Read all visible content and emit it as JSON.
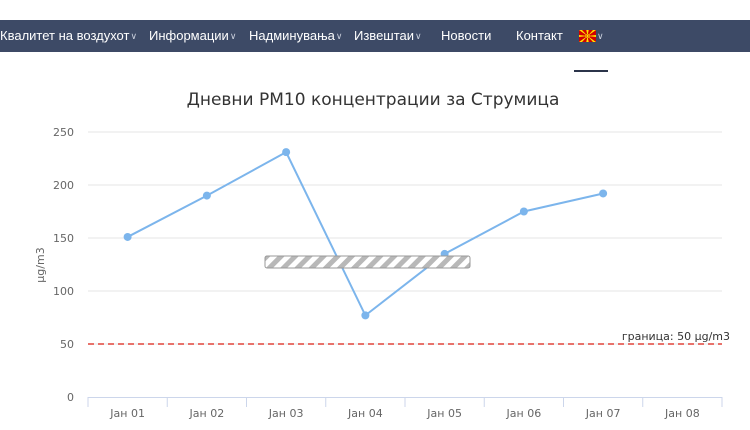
{
  "nav": {
    "items": [
      {
        "label": "Квалитет на воздухот",
        "has_dropdown": true
      },
      {
        "label": "Информации",
        "has_dropdown": true
      },
      {
        "label": "Надминувања",
        "has_dropdown": true
      },
      {
        "label": "Извештаи",
        "has_dropdown": true
      },
      {
        "label": "Новости",
        "has_dropdown": false
      },
      {
        "label": "Контакт",
        "has_dropdown": false
      }
    ],
    "language_flag": "macedonia-flag-icon",
    "colors": {
      "background": "#3d4a66",
      "text": "#ffffff"
    }
  },
  "chart_data": {
    "type": "line",
    "title": "Дневни PM10 концентрации за Струмица",
    "ylabel": "µg/m3",
    "xlabel": "",
    "categories": [
      "Јан 01",
      "Јан 02",
      "Јан 03",
      "Јан 04",
      "Јан 05",
      "Јан 06",
      "Јан 07",
      "Јан 08"
    ],
    "series": [
      {
        "values": [
          151,
          190,
          231,
          77,
          135,
          175,
          192,
          null
        ],
        "color": "#7cb5ec"
      }
    ],
    "ylim": [
      0,
      250
    ],
    "yticks": [
      0,
      50,
      100,
      150,
      200,
      250
    ],
    "grid": true,
    "plot_lines": [
      {
        "value": 50,
        "label": "граница: 50 µg/m3",
        "color": "#e0443a",
        "style": "dashed"
      }
    ],
    "loading_indicator": true
  }
}
